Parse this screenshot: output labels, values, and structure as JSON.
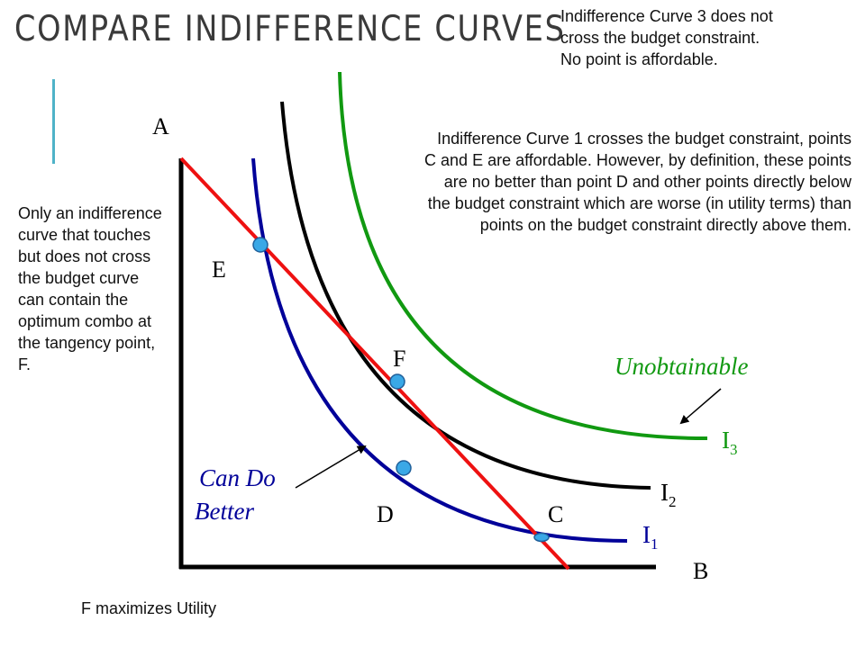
{
  "slide": {
    "title": "COMPARE INDIFFERENCE CURVES",
    "notes": {
      "top_right": "Indifference Curve 3 does not cross the budget constraint. No point is affordable.",
      "middle_right": "Indifference Curve 1 crosses the budget constraint, points C and E are affordable. However, by definition, these points are no better than point D and other points directly below the budget constraint which are worse (in utility terms) than points on the budget constraint directly above them.",
      "left": "Only an indifference curve that touches but does not cross the budget curve can contain the optimum combo at the tangency point, F.",
      "bottom": "F maximizes Utility"
    }
  },
  "diagram": {
    "axis_labels": {
      "y": "A",
      "x": "B"
    },
    "points": {
      "E": "E",
      "F": "F",
      "D": "D",
      "C": "C"
    },
    "curves": {
      "I1": {
        "letter": "I",
        "sub": "1",
        "color": "#000099"
      },
      "I2": {
        "letter": "I",
        "sub": "2",
        "color": "#000000"
      },
      "I3": {
        "letter": "I",
        "sub": "3",
        "color": "#119911"
      }
    },
    "budget_line_color": "#ee1111",
    "annotations": {
      "unobtainable": "Unobtainable",
      "can_do_better_line1": "Can Do",
      "can_do_better_line2": "Better"
    },
    "annotation_color_unobtainable": "#119911",
    "annotation_color_can_do_better": "#000099"
  }
}
